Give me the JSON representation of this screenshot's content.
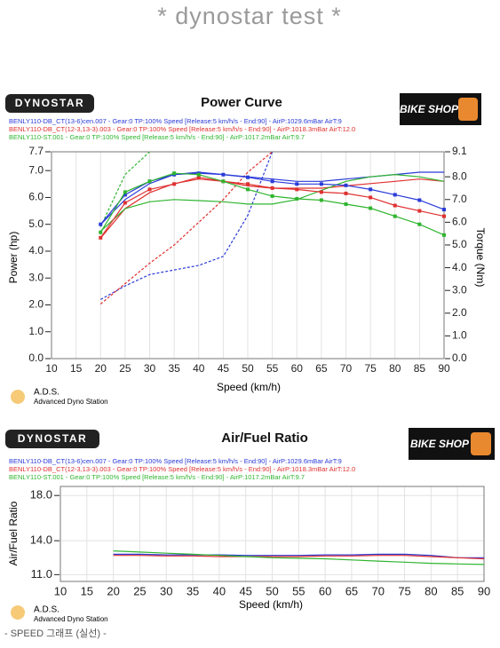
{
  "header": {
    "title": "* dynostar test *"
  },
  "footer": {
    "text": "- SPEED 그래프 (실선) -"
  },
  "chart_data": [
    {
      "type": "line",
      "title": "Power Curve",
      "logo": "DYNOSTAR",
      "brand": "BIKE SHOP",
      "ads_title": "A.D.S.",
      "ads_subtitle": "Advanced Dyno Station",
      "xlabel": "Speed (km/h)",
      "ylabel": "Power (hp)",
      "y2label": "Torque (Nm)",
      "grid": true,
      "x": [
        20,
        25,
        30,
        35,
        40,
        45,
        50,
        55,
        60,
        65,
        70,
        75,
        80,
        85,
        90
      ],
      "xlim": [
        10,
        90
      ],
      "xticks": [
        10,
        15,
        20,
        25,
        30,
        35,
        40,
        45,
        50,
        55,
        60,
        65,
        70,
        75,
        80,
        85,
        90
      ],
      "ylim": [
        0,
        7.7
      ],
      "yticks": [
        {
          "value": 0,
          "label": "0.0"
        },
        {
          "value": 1,
          "label": "1.0"
        },
        {
          "value": 2,
          "label": "2.0"
        },
        {
          "value": 3,
          "label": "3.0"
        },
        {
          "value": 4,
          "label": "4.0"
        },
        {
          "value": 5,
          "label": "5.0"
        },
        {
          "value": 6,
          "label": "6.0"
        },
        {
          "value": 7,
          "label": "7.0"
        },
        {
          "value": 7.7,
          "label": "7.7"
        }
      ],
      "y2lim": [
        0,
        9.1
      ],
      "y2ticks": [
        {
          "value": 0,
          "label": "0.0"
        },
        {
          "value": 1,
          "label": "1.0"
        },
        {
          "value": 2,
          "label": "2.0"
        },
        {
          "value": 3,
          "label": "3.0"
        },
        {
          "value": 4,
          "label": "4.0"
        },
        {
          "value": 5,
          "label": "5.0"
        },
        {
          "value": 6,
          "label": "6.0"
        },
        {
          "value": 7,
          "label": "7.0"
        },
        {
          "value": 8,
          "label": "8.0"
        },
        {
          "value": 9.1,
          "label": "9.1"
        }
      ],
      "series": [
        {
          "color": "#2a3ad8",
          "axis": "y2",
          "dash": true,
          "values": [
            2.6,
            3.2,
            3.7,
            3.9,
            4.1,
            4.5,
            6.3,
            9.1,
            null,
            null,
            null,
            null,
            null,
            null,
            null
          ]
        },
        {
          "color": "#e03030",
          "axis": "y2",
          "dash": true,
          "values": [
            2.4,
            3.3,
            4.2,
            5.0,
            6.0,
            7.0,
            8.2,
            9.1,
            null,
            null,
            null,
            null,
            null,
            null,
            null
          ]
        },
        {
          "color": "#2fb52f",
          "axis": "y2",
          "dash": true,
          "values": [
            5.8,
            8.1,
            9.1,
            null,
            null,
            null,
            null,
            null,
            null,
            null,
            null,
            null,
            null,
            null,
            null
          ]
        },
        {
          "color": "#2a3ad8",
          "axis": "y2",
          "values": [
            5.9,
            7.0,
            7.7,
            8.1,
            8.2,
            8.1,
            8.0,
            7.9,
            7.8,
            7.8,
            7.9,
            8.0,
            8.1,
            8.2,
            8.2
          ]
        },
        {
          "color": "#e03030",
          "axis": "y2",
          "values": [
            5.3,
            6.6,
            7.3,
            7.7,
            7.9,
            7.8,
            7.6,
            7.5,
            7.5,
            7.5,
            7.6,
            7.7,
            7.8,
            7.9,
            7.8
          ]
        },
        {
          "color": "#2fb52f",
          "axis": "y2",
          "values": [
            5.6,
            6.6,
            6.9,
            7.0,
            6.95,
            6.9,
            6.8,
            6.8,
            7.0,
            7.4,
            7.8,
            8.0,
            8.1,
            8.0,
            7.8
          ]
        },
        {
          "name": "BENLY110-DB_CT(13-6)cen.007 - Gear:0 TP:100% Speed [Release:5 km/h/s - End:90] - AirP:1029.6mBar AirT:9",
          "color": "#2a3ad8",
          "marker": "square",
          "values": [
            5.0,
            6.1,
            6.6,
            6.85,
            6.9,
            6.85,
            6.75,
            6.6,
            6.5,
            6.5,
            6.45,
            6.3,
            6.1,
            5.9,
            5.55
          ]
        },
        {
          "name": "BENLY110-DB_CT(12-3,13-3).003 - Gear:0 TP:100% Speed [Release:5 km/h/s - End:90] - AirP:1018.3mBar AirT:12.0",
          "color": "#e03030",
          "marker": "square",
          "values": [
            4.5,
            5.8,
            6.3,
            6.5,
            6.75,
            6.6,
            6.5,
            6.35,
            6.3,
            6.2,
            6.15,
            6.0,
            5.7,
            5.5,
            5.3
          ]
        },
        {
          "name": "BENLY110-ST.001 - Gear:0 TP:100% Speed [Release:5 km/h/s - End:90] - AirP:1017.2mBar AirT:9.7",
          "color": "#2fb52f",
          "marker": "square",
          "values": [
            4.7,
            6.2,
            6.6,
            6.9,
            6.85,
            6.6,
            6.3,
            6.05,
            5.95,
            5.9,
            5.75,
            5.6,
            5.3,
            5.0,
            4.6
          ]
        }
      ]
    },
    {
      "type": "line",
      "title": "Air/Fuel Ratio",
      "logo": "DYNOSTAR",
      "brand": "BIKE SHOP",
      "ads_title": "A.D.S.",
      "ads_subtitle": "Advanced Dyno Station",
      "xlabel": "Speed (km/h)",
      "ylabel": "Air/Fuel Ratio",
      "grid": true,
      "x": [
        20,
        25,
        30,
        35,
        40,
        45,
        50,
        55,
        60,
        65,
        70,
        75,
        80,
        85,
        90
      ],
      "xlim": [
        10,
        90
      ],
      "xticks": [
        10,
        15,
        20,
        25,
        30,
        35,
        40,
        45,
        50,
        55,
        60,
        65,
        70,
        75,
        80,
        85,
        90
      ],
      "ylim": [
        10.4,
        18.8
      ],
      "yticks": [
        {
          "value": 11,
          "label": "11.0"
        },
        {
          "value": 14,
          "label": "14.0"
        },
        {
          "value": 18,
          "label": "18.0"
        }
      ],
      "series": [
        {
          "name": "BENLY110-DB_CT(13-6)cen.007 - Gear:0 TP:100% Speed [Release:5 km/h/s - End:90] - AirP:1029.6mBar AirT:9",
          "color": "#2a3ad8",
          "values": [
            12.8,
            12.8,
            12.75,
            12.75,
            12.75,
            12.7,
            12.7,
            12.7,
            12.75,
            12.75,
            12.8,
            12.8,
            12.7,
            12.5,
            12.5
          ]
        },
        {
          "name": "BENLY110-DB_CT(12-3,13-3).003 - Gear:0 TP:100% Speed [Release:5 km/h/s - End:90] - AirP:1018.3mBar AirT:12.0",
          "color": "#e03030",
          "values": [
            12.7,
            12.7,
            12.65,
            12.65,
            12.6,
            12.6,
            12.6,
            12.6,
            12.65,
            12.65,
            12.7,
            12.7,
            12.6,
            12.5,
            12.4
          ]
        },
        {
          "name": "BENLY110-ST.001 - Gear:0 TP:100% Speed [Release:5 km/h/s - End:90] - AirP:1017.2mBar AirT:9.7",
          "color": "#2fb52f",
          "values": [
            13.1,
            13.0,
            12.9,
            12.8,
            12.7,
            12.6,
            12.5,
            12.45,
            12.4,
            12.3,
            12.2,
            12.1,
            12.0,
            11.95,
            11.9
          ]
        }
      ]
    }
  ]
}
